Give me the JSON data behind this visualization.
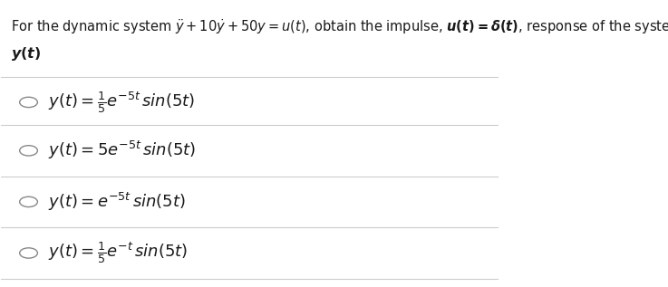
{
  "bg_color": "#ffffff",
  "text_color": "#1a1a1a",
  "title_line1": "For the dynamic system $\\ddot{y} + 10\\dot{y} + 50y = u(t)$, obtain the impulse, $\\boldsymbol{u(t) = \\delta(t)}$, response of the system,",
  "title_line2": "$\\boldsymbol{y(t)}$",
  "options": [
    "$y(t) = \\frac{1}{5}e^{-5t}\\,sin(5t)$",
    "$y(t) = 5e^{-5t}\\,sin(5t)$",
    "$y(t) = e^{-5t}\\,sin(5t)$",
    "$y(t) = \\frac{1}{5}e^{-t}\\,sin(5t)$"
  ],
  "divider_color": "#cccccc",
  "circle_color": "#888888",
  "option_fontsize": 13,
  "title_fontsize": 10.5,
  "figsize": [
    7.37,
    3.17
  ],
  "dpi": 100
}
